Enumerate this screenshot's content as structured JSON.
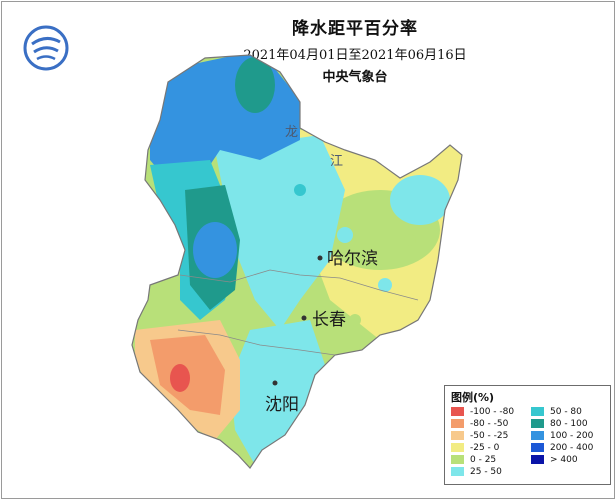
{
  "header": {
    "title": "降水距平百分率",
    "period": "2021年04月01日至2021年06月16日",
    "agency": "中央气象台"
  },
  "cities": [
    {
      "name": "哈尔滨"
    },
    {
      "name": "长春"
    },
    {
      "name": "沈阳"
    }
  ],
  "province_labels": [
    "龙",
    "江"
  ],
  "legend": {
    "title": "图例(%)",
    "items": [
      {
        "label": "-100 - -80",
        "color": "#e8554f"
      },
      {
        "label": "-80 - -50",
        "color": "#f39c6b"
      },
      {
        "label": "-50 - -25",
        "color": "#f7c98c"
      },
      {
        "label": "-25 - 0",
        "color": "#f2ec83"
      },
      {
        "label": "0 - 25",
        "color": "#b8e079"
      },
      {
        "label": "25 - 50",
        "color": "#7ee6ea"
      },
      {
        "label": "50 - 80",
        "color": "#36c7cf"
      },
      {
        "label": "80 - 100",
        "color": "#1f9a8c"
      },
      {
        "label": "100 - 200",
        "color": "#3493e0"
      },
      {
        "label": "200 - 400",
        "color": "#1c58d6"
      },
      {
        "label": "> 400",
        "color": "#0a14a8"
      }
    ]
  }
}
